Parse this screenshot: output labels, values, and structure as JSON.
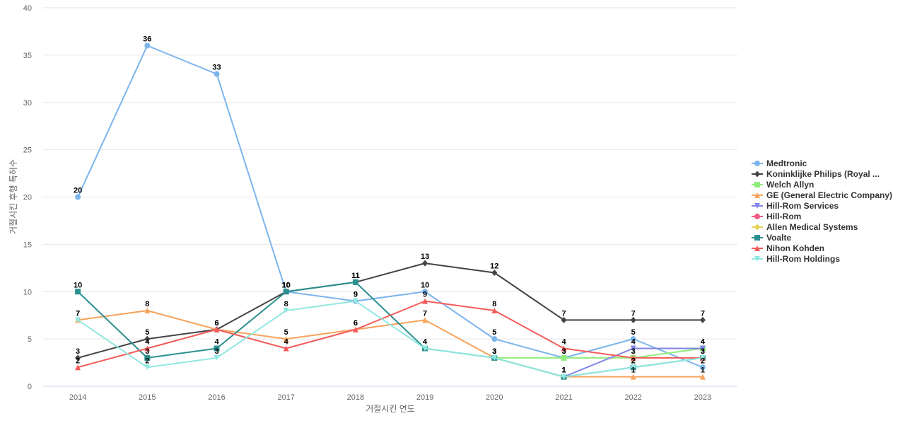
{
  "chart_data": {
    "type": "line",
    "title": "",
    "xlabel": "거절시킨 연도",
    "ylabel": "거절시킨 후행 특허수",
    "ylim": [
      0,
      40
    ],
    "yticks": [
      0,
      5,
      10,
      15,
      20,
      25,
      30,
      35,
      40
    ],
    "grid": true,
    "legend_position": "right",
    "categories": [
      "2014",
      "2015",
      "2016",
      "2017",
      "2018",
      "2019",
      "2020",
      "2021",
      "2022",
      "2023"
    ],
    "series": [
      {
        "name": "Medtronic",
        "color": "#7cb5ec",
        "marker": "circle",
        "values": [
          20,
          36,
          33,
          10,
          9,
          10,
          5,
          3,
          5,
          2
        ]
      },
      {
        "name": "Koninklijke Philips (Royal ...",
        "color": "#434348",
        "marker": "diamond",
        "values": [
          3,
          5,
          6,
          10,
          11,
          13,
          12,
          7,
          7,
          7
        ]
      },
      {
        "name": "Welch Allyn",
        "color": "#90ed7d",
        "marker": "square",
        "values": [
          null,
          null,
          null,
          null,
          null,
          null,
          3,
          3,
          3,
          4
        ]
      },
      {
        "name": "GE (General Electric Company)",
        "color": "#f7a35c",
        "marker": "triangle",
        "values": [
          7,
          8,
          6,
          5,
          6,
          7,
          3,
          1,
          1,
          1
        ]
      },
      {
        "name": "Hill-Rom Services",
        "color": "#8085e9",
        "marker": "triangle-down",
        "values": [
          null,
          null,
          null,
          null,
          null,
          null,
          null,
          1,
          4,
          4
        ]
      },
      {
        "name": "Hill-Rom",
        "color": "#f15c80",
        "marker": "circle",
        "values": [
          null,
          null,
          null,
          null,
          null,
          null,
          null,
          null,
          null,
          null
        ]
      },
      {
        "name": "Allen Medical Systems",
        "color": "#e4d354",
        "marker": "diamond",
        "values": [
          null,
          null,
          null,
          null,
          null,
          null,
          null,
          null,
          null,
          null
        ]
      },
      {
        "name": "Voalte",
        "color": "#2b908f",
        "marker": "square",
        "values": [
          10,
          3,
          4,
          10,
          11,
          4,
          3,
          1,
          2,
          3
        ]
      },
      {
        "name": "Nihon Kohden",
        "color": "#f45b5b",
        "marker": "triangle",
        "values": [
          2,
          4,
          6,
          4,
          6,
          9,
          8,
          4,
          3,
          3
        ]
      },
      {
        "name": "Hill-Rom Holdings",
        "color": "#91e8e1",
        "marker": "triangle-down",
        "values": [
          7,
          2,
          3,
          8,
          9,
          4,
          3,
          1,
          2,
          3
        ]
      }
    ]
  }
}
